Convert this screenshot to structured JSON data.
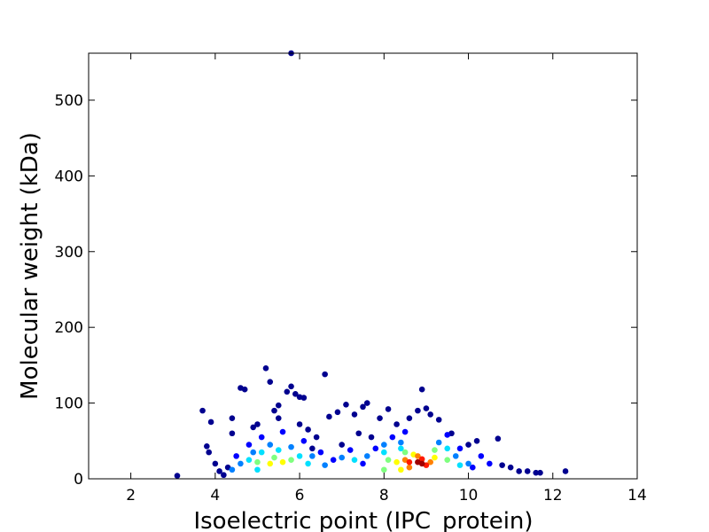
{
  "chart_data": {
    "type": "scatter",
    "xlabel": "Isoelectric point (IPC_protein)",
    "ylabel": "Molecular weight (kDa)",
    "xlim": [
      1,
      14
    ],
    "ylim": [
      0,
      562
    ],
    "xticks": [
      2,
      4,
      6,
      8,
      10,
      12,
      14
    ],
    "yticks": [
      0,
      100,
      200,
      300,
      400,
      500
    ],
    "series": [
      {
        "color": "#00008f",
        "x": [
          3.1,
          3.7,
          3.8,
          3.9,
          3.85,
          4.0,
          4.2,
          4.4,
          4.4,
          4.6,
          4.7,
          4.9,
          5.0,
          5.2,
          5.3,
          5.4,
          5.5,
          5.5,
          5.7,
          5.8,
          5.9,
          5.8,
          6.0,
          6.1,
          6.0,
          6.2,
          6.4,
          6.6,
          6.7,
          6.9,
          7.1,
          7.3,
          7.4,
          7.5,
          7.6,
          7.7,
          7.9,
          8.1,
          8.3,
          8.6,
          8.8,
          8.9,
          9.0,
          9.1,
          9.3,
          9.6,
          10.0,
          10.2,
          10.7,
          10.8,
          11.0,
          11.2,
          11.4,
          11.6,
          11.7,
          12.3,
          6.3,
          7.0,
          4.1,
          4.3
        ],
        "values": [
          4,
          90,
          43,
          75,
          35,
          20,
          5,
          80,
          60,
          120,
          118,
          68,
          72,
          146,
          128,
          90,
          80,
          97,
          115,
          122,
          112,
          562,
          108,
          107,
          72,
          65,
          55,
          138,
          82,
          88,
          98,
          85,
          60,
          95,
          100,
          55,
          80,
          92,
          72,
          80,
          90,
          118,
          93,
          85,
          78,
          60,
          45,
          50,
          53,
          18,
          15,
          10,
          10,
          8,
          8,
          10,
          40,
          45,
          10,
          15
        ]
      },
      {
        "color": "#0000ff",
        "x": [
          4.5,
          4.8,
          5.1,
          5.6,
          6.1,
          6.5,
          7.2,
          7.8,
          8.2,
          8.5,
          9.5,
          9.8,
          10.3,
          10.5,
          10.1,
          7.5,
          6.8
        ],
        "values": [
          30,
          45,
          55,
          62,
          50,
          35,
          38,
          40,
          55,
          62,
          58,
          40,
          30,
          20,
          15,
          20,
          25
        ]
      },
      {
        "color": "#0080ff",
        "x": [
          4.6,
          4.9,
          5.3,
          5.8,
          6.3,
          7.0,
          7.6,
          8.0,
          8.4,
          9.3,
          9.7,
          10.0,
          4.4,
          6.6
        ],
        "values": [
          20,
          35,
          45,
          42,
          30,
          28,
          30,
          45,
          48,
          48,
          30,
          20,
          12,
          18
        ]
      },
      {
        "color": "#00e0ff",
        "x": [
          4.8,
          5.1,
          5.5,
          6.0,
          7.3,
          8.0,
          8.4,
          9.5,
          9.8,
          5.0,
          6.2
        ],
        "values": [
          25,
          35,
          38,
          30,
          25,
          35,
          40,
          40,
          18,
          12,
          20
        ]
      },
      {
        "color": "#7fff7f",
        "x": [
          5.0,
          5.4,
          5.8,
          8.1,
          8.5,
          9.2,
          9.5,
          8.0
        ],
        "values": [
          22,
          28,
          25,
          25,
          35,
          38,
          25,
          12
        ]
      },
      {
        "color": "#ffff00",
        "x": [
          5.3,
          5.6,
          8.3,
          8.7,
          9.2,
          8.4
        ],
        "values": [
          20,
          22,
          22,
          32,
          28,
          12
        ]
      },
      {
        "color": "#ff8000",
        "x": [
          8.5,
          8.8,
          9.1,
          8.6
        ],
        "values": [
          25,
          30,
          22,
          15
        ]
      },
      {
        "color": "#ff1a00",
        "x": [
          8.6,
          8.9,
          9.0
        ],
        "values": [
          22,
          26,
          18
        ]
      },
      {
        "color": "#9f0000",
        "x": [
          8.8,
          8.9
        ],
        "values": [
          22,
          20
        ]
      }
    ]
  }
}
